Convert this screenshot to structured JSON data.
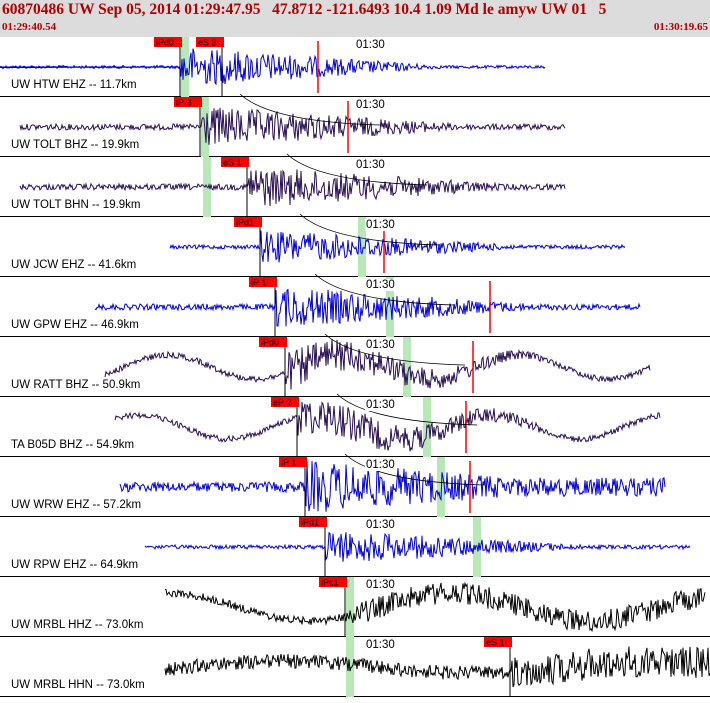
{
  "header": {
    "title": "60870486 UW Sep 05, 2014 01:29:47.95   47.8712 -121.6493 10.4 1.09 Md le amyw UW 01   5",
    "start_time": "01:29:40.54",
    "end_time": "01:30:19.65"
  },
  "tick_label": "01:30",
  "colors": {
    "blue": "#0000e0",
    "purple": "#2a1055",
    "black": "#000000",
    "pick": "#ff0000",
    "green": "#b8e8b8",
    "header": "#dcdcdc",
    "title": "#b00000"
  },
  "traces": [
    {
      "label": "UW HTW EHZ -- 11.7km",
      "color": "blue",
      "pick_label": "iPd0",
      "pick2_label": "eS 2",
      "tick_label": "01:30",
      "second_tick_label": ""
    },
    {
      "label": "UW TOLT BHZ -- 19.9km",
      "color": "purple",
      "pick_label": "iP 3",
      "pick2_label": "",
      "tick_label": "01:30",
      "second_tick_label": ""
    },
    {
      "label": "UW TOLT BHN -- 19.9km",
      "color": "purple",
      "pick_label": "eS 1",
      "pick2_label": "",
      "tick_label": "01:30",
      "second_tick_label": ""
    },
    {
      "label": "UW JCW EHZ -- 41.6km",
      "color": "blue",
      "pick_label": "iPd1",
      "pick2_label": "",
      "tick_label": "01:30",
      "second_tick_label": ""
    },
    {
      "label": "UW GPW EHZ -- 46.9km",
      "color": "blue",
      "pick_label": "iP 1",
      "pick2_label": "",
      "tick_label": "01:30",
      "second_tick_label": ""
    },
    {
      "label": "UW RATT BHZ -- 50.9km",
      "color": "purple",
      "pick_label": "iPd0",
      "pick2_label": "",
      "tick_label": "01:30",
      "second_tick_label": ""
    },
    {
      "label": "TA B05D BHZ -- 54.9km",
      "color": "purple",
      "pick_label": "eP 2",
      "pick2_label": "",
      "tick_label": "01:30",
      "second_tick_label": ""
    },
    {
      "label": "UW WRW EHZ -- 57.2km",
      "color": "blue",
      "pick_label": "iP 1",
      "pick2_label": "",
      "tick_label": "01:30",
      "second_tick_label": ""
    },
    {
      "label": "UW RPW EHZ -- 64.9km",
      "color": "blue",
      "pick_label": "iPd1",
      "pick2_label": "",
      "tick_label": "01:30",
      "second_tick_label": ""
    },
    {
      "label": "UW MRBL HHZ -- 73.0km",
      "color": "black",
      "pick_label": "iPc1",
      "pick2_label": "",
      "tick_label": "01:30",
      "second_tick_label": ""
    },
    {
      "label": "UW MRBL HHN -- 73.0km",
      "color": "black",
      "pick_label": "eS 1",
      "pick2_label": "",
      "tick_label": "01:30",
      "second_tick_label": ""
    }
  ]
}
